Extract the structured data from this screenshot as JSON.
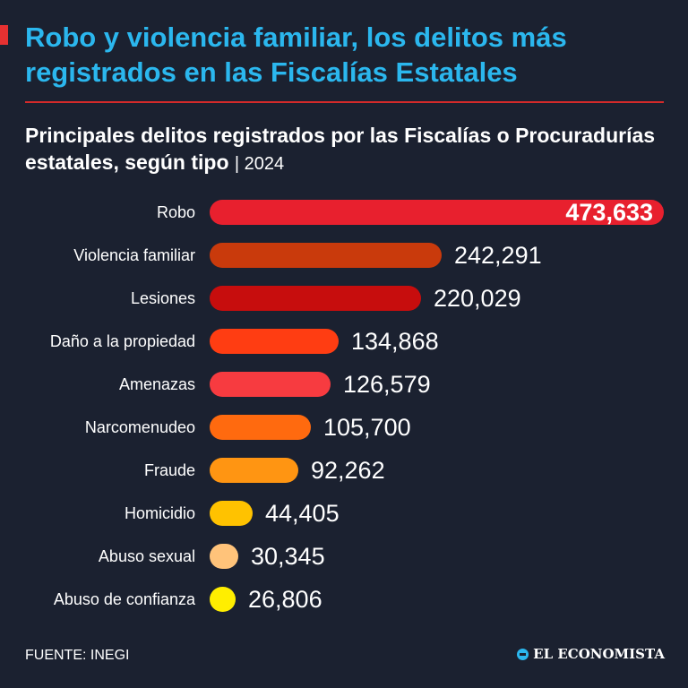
{
  "header": {
    "title": "Robo y violencia familiar, los delitos más registrados en las Fiscalías Estatales",
    "subtitle": "Principales delitos registrados por las Fiscalías o Procuradurías estatales, según tipo",
    "year_label": "| 2024"
  },
  "chart_data": {
    "type": "bar",
    "orientation": "horizontal",
    "categories": [
      "Robo",
      "Violencia familiar",
      "Lesiones",
      "Daño a la propiedad",
      "Amenazas",
      "Narcomenudeo",
      "Fraude",
      "Homicidio",
      "Abuso sexual",
      "Abuso de confianza"
    ],
    "values": [
      473633,
      242291,
      220029,
      134868,
      126579,
      105700,
      92262,
      44405,
      30345,
      26806
    ],
    "value_labels": [
      "473,633",
      "242,291",
      "220,029",
      "134,868",
      "126,579",
      "105,700",
      "92,262",
      "44,405",
      "30,345",
      "26,806"
    ],
    "colors": [
      "#e8202e",
      "#c93a0c",
      "#c70d0d",
      "#ff3d12",
      "#f73b40",
      "#ff6a0f",
      "#ff9512",
      "#ffc200",
      "#ffc37a",
      "#ffee00"
    ],
    "title": "Principales delitos registrados por las Fiscalías o Procuradurías estatales, según tipo",
    "xlabel": "",
    "ylabel": "",
    "grid": false,
    "legend": "none"
  },
  "footer": {
    "source": "FUENTE: INEGI",
    "logo_text": "EL ECONOMISTA"
  }
}
